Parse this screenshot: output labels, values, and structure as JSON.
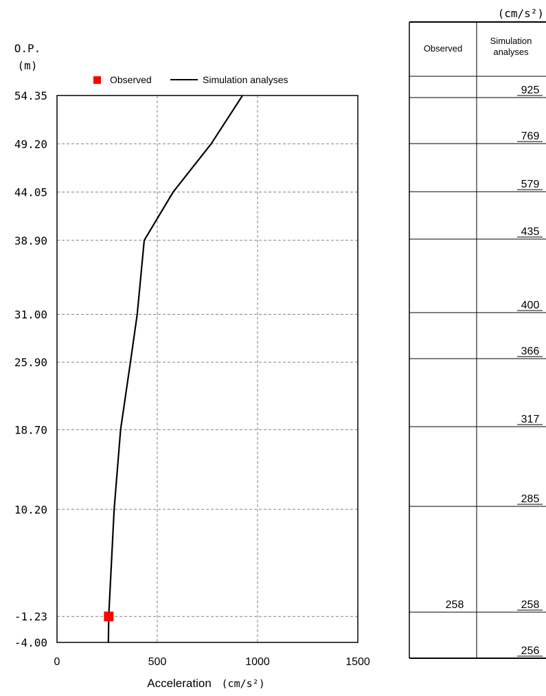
{
  "chart_data": {
    "type": "line",
    "y_axis_label_line1": "O.P.",
    "y_axis_label_line2": "(m)",
    "xlabel": "Acceleration",
    "xunit": "(cm/s²)",
    "xlim": [
      0,
      1500
    ],
    "ylim": [
      -4.0,
      54.35
    ],
    "grid": true,
    "legend_position": "top",
    "x_ticks": [
      {
        "value": 0,
        "label": "0"
      },
      {
        "value": 500,
        "label": "500"
      },
      {
        "value": 1000,
        "label": "1000"
      },
      {
        "value": 1500,
        "label": "1500"
      }
    ],
    "y_ticks": [
      {
        "value": 54.35,
        "label": "54.35"
      },
      {
        "value": 49.2,
        "label": "49.20"
      },
      {
        "value": 44.05,
        "label": "44.05"
      },
      {
        "value": 38.9,
        "label": "38.90"
      },
      {
        "value": 31.0,
        "label": "31.00"
      },
      {
        "value": 25.9,
        "label": "25.90"
      },
      {
        "value": 18.7,
        "label": "18.70"
      },
      {
        "value": 10.2,
        "label": "10.20"
      },
      {
        "value": -1.23,
        "label": "-1.23"
      },
      {
        "value": -4.0,
        "label": "-4.00"
      }
    ],
    "series": [
      {
        "name": "Observed",
        "kind": "marker",
        "color": "#ff0000",
        "points": [
          {
            "x": 258,
            "y": -1.23
          }
        ]
      },
      {
        "name": "Simulation analyses",
        "kind": "line",
        "color": "#000000",
        "points": [
          {
            "x": 925,
            "y": 54.35
          },
          {
            "x": 769,
            "y": 49.2
          },
          {
            "x": 579,
            "y": 44.05
          },
          {
            "x": 435,
            "y": 38.9
          },
          {
            "x": 400,
            "y": 31.0
          },
          {
            "x": 366,
            "y": 25.9
          },
          {
            "x": 317,
            "y": 18.7
          },
          {
            "x": 285,
            "y": 10.2
          },
          {
            "x": 258,
            "y": -1.23
          },
          {
            "x": 256,
            "y": -4.0
          }
        ]
      }
    ]
  },
  "table": {
    "unit_label": "(cm/s²)",
    "col_observed": "Observed",
    "col_simulation_line1": "Simulation",
    "col_simulation_line2": "analyses",
    "rows": [
      {
        "observed": "",
        "simulation": "925"
      },
      {
        "observed": "",
        "simulation": "769"
      },
      {
        "observed": "",
        "simulation": "579"
      },
      {
        "observed": "",
        "simulation": "435"
      },
      {
        "observed": "",
        "simulation": "400"
      },
      {
        "observed": "",
        "simulation": "366"
      },
      {
        "observed": "",
        "simulation": "317"
      },
      {
        "observed": "",
        "simulation": "285"
      },
      {
        "observed": "258",
        "simulation": "258"
      },
      {
        "observed": "",
        "simulation": "256"
      }
    ]
  }
}
